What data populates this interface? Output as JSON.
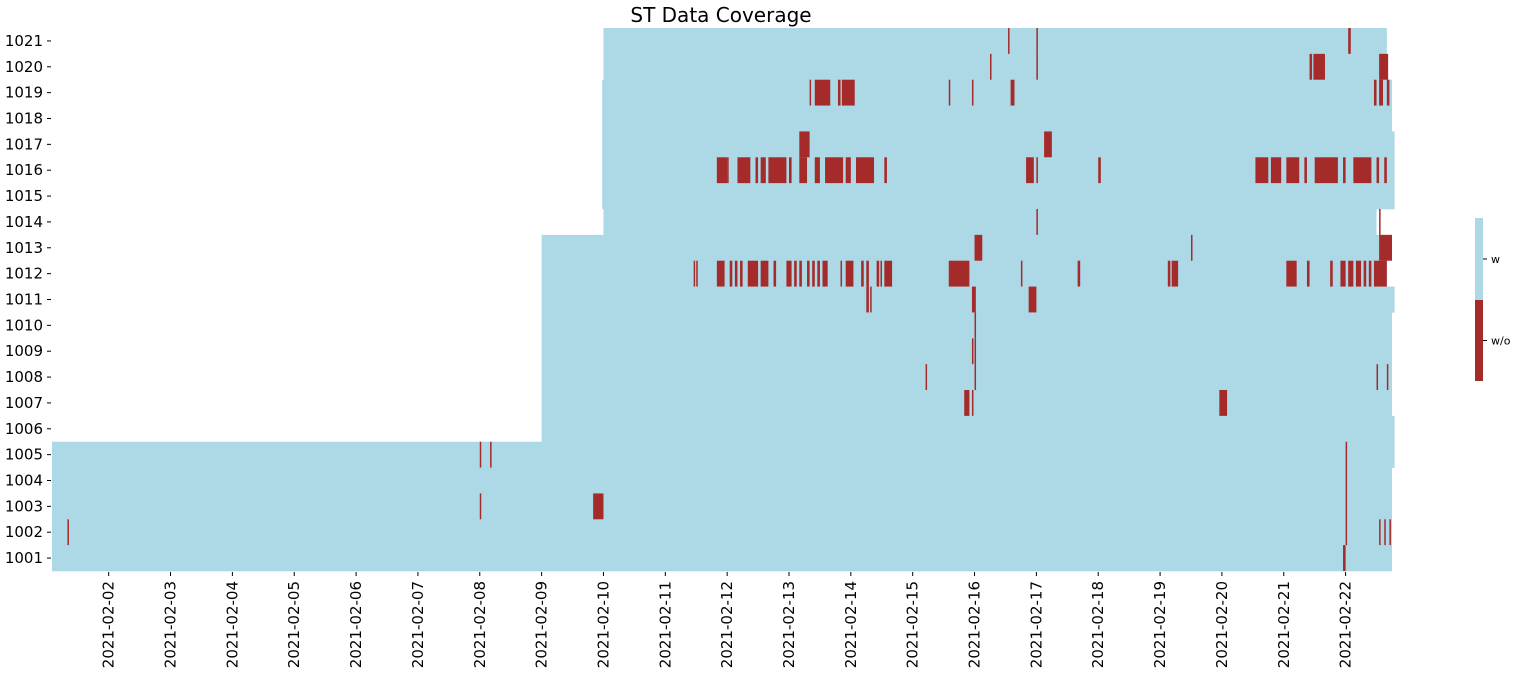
{
  "chart_data": {
    "type": "heatmap",
    "title": "ST Data Coverage",
    "xlabel": "",
    "ylabel": "",
    "x_tick_labels": [
      "2021-02-02",
      "2021-02-03",
      "2021-02-04",
      "2021-02-05",
      "2021-02-06",
      "2021-02-07",
      "2021-02-08",
      "2021-02-09",
      "2021-02-10",
      "2021-02-11",
      "2021-02-12",
      "2021-02-13",
      "2021-02-14",
      "2021-02-15",
      "2021-02-16",
      "2021-02-17",
      "2021-02-18",
      "2021-02-19",
      "2021-02-20",
      "2021-02-21",
      "2021-02-22"
    ],
    "x_range": [
      "2021-02-01T02:00",
      "2021-02-22T18:00"
    ],
    "rows": [
      "1021",
      "1020",
      "1019",
      "1018",
      "1017",
      "1016",
      "1015",
      "1014",
      "1013",
      "1012",
      "1011",
      "1010",
      "1009",
      "1008",
      "1007",
      "1006",
      "1005",
      "1004",
      "1003",
      "1002",
      "1001"
    ],
    "categories": [
      "w",
      "w/o"
    ],
    "colors": {
      "w": "#add8e6",
      "w/o": "#a52a2a"
    },
    "coverage": [
      {
        "row": "1021",
        "start": "2021-02-10T00:00",
        "end": "2021-02-22T16:00"
      },
      {
        "row": "1020",
        "start": "2021-02-10T00:00",
        "end": "2021-02-22T16:00"
      },
      {
        "row": "1019",
        "start": "2021-02-09T23:30",
        "end": "2021-02-22T18:00"
      },
      {
        "row": "1018",
        "start": "2021-02-09T23:30",
        "end": "2021-02-22T18:00"
      },
      {
        "row": "1017",
        "start": "2021-02-09T23:30",
        "end": "2021-02-22T19:00"
      },
      {
        "row": "1016",
        "start": "2021-02-09T23:30",
        "end": "2021-02-22T19:00"
      },
      {
        "row": "1015",
        "start": "2021-02-09T23:30",
        "end": "2021-02-22T19:00"
      },
      {
        "row": "1014",
        "start": "2021-02-10T00:00",
        "end": "2021-02-22T12:00"
      },
      {
        "row": "1013",
        "start": "2021-02-09T00:00",
        "end": "2021-02-22T16:00"
      },
      {
        "row": "1012",
        "start": "2021-02-09T00:00",
        "end": "2021-02-22T16:00"
      },
      {
        "row": "1011",
        "start": "2021-02-09T00:00",
        "end": "2021-02-22T19:00"
      },
      {
        "row": "1010",
        "start": "2021-02-09T00:00",
        "end": "2021-02-22T18:00"
      },
      {
        "row": "1009",
        "start": "2021-02-09T00:00",
        "end": "2021-02-22T18:00"
      },
      {
        "row": "1008",
        "start": "2021-02-09T00:00",
        "end": "2021-02-22T18:00"
      },
      {
        "row": "1007",
        "start": "2021-02-09T00:00",
        "end": "2021-02-22T18:00"
      },
      {
        "row": "1006",
        "start": "2021-02-09T00:00",
        "end": "2021-02-22T19:00"
      },
      {
        "row": "1005",
        "start": "2021-02-01T02:00",
        "end": "2021-02-22T19:00"
      },
      {
        "row": "1004",
        "start": "2021-02-01T02:00",
        "end": "2021-02-22T18:00"
      },
      {
        "row": "1003",
        "start": "2021-02-01T02:00",
        "end": "2021-02-22T18:00"
      },
      {
        "row": "1002",
        "start": "2021-02-01T02:00",
        "end": "2021-02-22T18:00"
      },
      {
        "row": "1001",
        "start": "2021-02-01T02:00",
        "end": "2021-02-22T18:00"
      }
    ],
    "gaps": [
      {
        "row": "1021",
        "start": "2021-02-16T13:00",
        "end": "2021-02-16T13:30"
      },
      {
        "row": "1021",
        "start": "2021-02-17T00:00",
        "end": "2021-02-17T00:30"
      },
      {
        "row": "1021",
        "start": "2021-02-22T01:00",
        "end": "2021-02-22T02:00"
      },
      {
        "row": "1020",
        "start": "2021-02-16T06:00",
        "end": "2021-02-16T06:30"
      },
      {
        "row": "1020",
        "start": "2021-02-17T00:00",
        "end": "2021-02-17T00:30"
      },
      {
        "row": "1020",
        "start": "2021-02-21T10:00",
        "end": "2021-02-21T11:00"
      },
      {
        "row": "1020",
        "start": "2021-02-21T11:30",
        "end": "2021-02-21T16:00"
      },
      {
        "row": "1020",
        "start": "2021-02-22T13:00",
        "end": "2021-02-22T16:30"
      },
      {
        "row": "1019",
        "start": "2021-02-13T08:00",
        "end": "2021-02-13T08:30"
      },
      {
        "row": "1019",
        "start": "2021-02-13T10:00",
        "end": "2021-02-13T16:00"
      },
      {
        "row": "1019",
        "start": "2021-02-13T19:00",
        "end": "2021-02-13T20:00"
      },
      {
        "row": "1019",
        "start": "2021-02-13T20:30",
        "end": "2021-02-14T01:30"
      },
      {
        "row": "1019",
        "start": "2021-02-15T14:00",
        "end": "2021-02-15T14:30"
      },
      {
        "row": "1019",
        "start": "2021-02-15T23:00",
        "end": "2021-02-15T23:30"
      },
      {
        "row": "1019",
        "start": "2021-02-16T14:00",
        "end": "2021-02-16T15:30"
      },
      {
        "row": "1019",
        "start": "2021-02-22T11:00",
        "end": "2021-02-22T12:00"
      },
      {
        "row": "1019",
        "start": "2021-02-22T13:00",
        "end": "2021-02-22T14:30"
      },
      {
        "row": "1019",
        "start": "2021-02-22T16:00",
        "end": "2021-02-22T17:00"
      },
      {
        "row": "1017",
        "start": "2021-02-13T04:00",
        "end": "2021-02-13T08:00"
      },
      {
        "row": "1017",
        "start": "2021-02-17T03:00",
        "end": "2021-02-17T06:00"
      },
      {
        "row": "1016",
        "start": "2021-02-11T20:00",
        "end": "2021-02-12T00:00"
      },
      {
        "row": "1016",
        "start": "2021-02-12T00:00",
        "end": "2021-02-12T00:30"
      },
      {
        "row": "1016",
        "start": "2021-02-12T04:00",
        "end": "2021-02-12T09:00"
      },
      {
        "row": "1016",
        "start": "2021-02-12T11:00",
        "end": "2021-02-12T12:00"
      },
      {
        "row": "1016",
        "start": "2021-02-12T13:00",
        "end": "2021-02-12T15:00"
      },
      {
        "row": "1016",
        "start": "2021-02-12T16:00",
        "end": "2021-02-12T23:00"
      },
      {
        "row": "1016",
        "start": "2021-02-13T00:00",
        "end": "2021-02-13T01:00"
      },
      {
        "row": "1016",
        "start": "2021-02-13T04:00",
        "end": "2021-02-13T07:00"
      },
      {
        "row": "1016",
        "start": "2021-02-13T10:00",
        "end": "2021-02-13T12:00"
      },
      {
        "row": "1016",
        "start": "2021-02-13T14:00",
        "end": "2021-02-13T21:00"
      },
      {
        "row": "1016",
        "start": "2021-02-13T22:00",
        "end": "2021-02-14T00:00"
      },
      {
        "row": "1016",
        "start": "2021-02-14T02:00",
        "end": "2021-02-14T09:00"
      },
      {
        "row": "1016",
        "start": "2021-02-14T13:00",
        "end": "2021-02-14T14:00"
      },
      {
        "row": "1016",
        "start": "2021-02-16T20:00",
        "end": "2021-02-16T23:00"
      },
      {
        "row": "1016",
        "start": "2021-02-17T00:00",
        "end": "2021-02-17T00:30"
      },
      {
        "row": "1016",
        "start": "2021-02-18T00:00",
        "end": "2021-02-18T01:00"
      },
      {
        "row": "1016",
        "start": "2021-02-20T13:00",
        "end": "2021-02-20T18:00"
      },
      {
        "row": "1016",
        "start": "2021-02-20T19:00",
        "end": "2021-02-20T23:00"
      },
      {
        "row": "1016",
        "start": "2021-02-21T01:00",
        "end": "2021-02-21T06:00"
      },
      {
        "row": "1016",
        "start": "2021-02-21T08:00",
        "end": "2021-02-21T09:00"
      },
      {
        "row": "1016",
        "start": "2021-02-21T12:00",
        "end": "2021-02-21T21:00"
      },
      {
        "row": "1016",
        "start": "2021-02-21T23:00",
        "end": "2021-02-22T00:00"
      },
      {
        "row": "1016",
        "start": "2021-02-22T03:00",
        "end": "2021-02-22T10:00"
      },
      {
        "row": "1016",
        "start": "2021-02-22T12:00",
        "end": "2021-02-22T13:00"
      },
      {
        "row": "1016",
        "start": "2021-02-22T15:00",
        "end": "2021-02-22T16:00"
      },
      {
        "row": "1014",
        "start": "2021-02-17T00:00",
        "end": "2021-02-17T00:30"
      },
      {
        "row": "1014",
        "start": "2021-02-22T13:00",
        "end": "2021-02-22T13:30"
      },
      {
        "row": "1013",
        "start": "2021-02-16T00:00",
        "end": "2021-02-16T03:00"
      },
      {
        "row": "1013",
        "start": "2021-02-19T12:00",
        "end": "2021-02-19T12:30"
      },
      {
        "row": "1013",
        "start": "2021-02-22T13:00",
        "end": "2021-02-22T18:00"
      },
      {
        "row": "1012",
        "start": "2021-02-11T11:00",
        "end": "2021-02-11T11:30"
      },
      {
        "row": "1012",
        "start": "2021-02-11T12:00",
        "end": "2021-02-11T12:30"
      },
      {
        "row": "1012",
        "start": "2021-02-11T20:00",
        "end": "2021-02-11T23:00"
      },
      {
        "row": "1012",
        "start": "2021-02-12T01:00",
        "end": "2021-02-12T02:00"
      },
      {
        "row": "1012",
        "start": "2021-02-12T03:00",
        "end": "2021-02-12T04:00"
      },
      {
        "row": "1012",
        "start": "2021-02-12T05:00",
        "end": "2021-02-12T06:00"
      },
      {
        "row": "1012",
        "start": "2021-02-12T08:00",
        "end": "2021-02-12T12:00"
      },
      {
        "row": "1012",
        "start": "2021-02-12T13:00",
        "end": "2021-02-12T16:00"
      },
      {
        "row": "1012",
        "start": "2021-02-12T18:00",
        "end": "2021-02-12T19:00"
      },
      {
        "row": "1012",
        "start": "2021-02-12T23:00",
        "end": "2021-02-13T01:00"
      },
      {
        "row": "1012",
        "start": "2021-02-13T02:00",
        "end": "2021-02-13T03:00"
      },
      {
        "row": "1012",
        "start": "2021-02-13T04:00",
        "end": "2021-02-13T05:00"
      },
      {
        "row": "1012",
        "start": "2021-02-13T07:00",
        "end": "2021-02-13T08:00"
      },
      {
        "row": "1012",
        "start": "2021-02-13T09:00",
        "end": "2021-02-13T10:00"
      },
      {
        "row": "1012",
        "start": "2021-02-13T11:00",
        "end": "2021-02-13T12:00"
      },
      {
        "row": "1012",
        "start": "2021-02-13T13:00",
        "end": "2021-02-13T15:00"
      },
      {
        "row": "1012",
        "start": "2021-02-13T20:00",
        "end": "2021-02-13T20:30"
      },
      {
        "row": "1012",
        "start": "2021-02-13T22:00",
        "end": "2021-02-14T01:00"
      },
      {
        "row": "1012",
        "start": "2021-02-14T04:00",
        "end": "2021-02-14T05:00"
      },
      {
        "row": "1012",
        "start": "2021-02-14T06:00",
        "end": "2021-02-14T07:00"
      },
      {
        "row": "1012",
        "start": "2021-02-14T10:00",
        "end": "2021-02-14T11:00"
      },
      {
        "row": "1012",
        "start": "2021-02-14T11:30",
        "end": "2021-02-14T12:00"
      },
      {
        "row": "1012",
        "start": "2021-02-14T13:00",
        "end": "2021-02-14T16:00"
      },
      {
        "row": "1012",
        "start": "2021-02-15T14:00",
        "end": "2021-02-15T22:00"
      },
      {
        "row": "1012",
        "start": "2021-02-16T18:00",
        "end": "2021-02-16T18:30"
      },
      {
        "row": "1012",
        "start": "2021-02-17T16:00",
        "end": "2021-02-17T17:00"
      },
      {
        "row": "1012",
        "start": "2021-02-19T03:00",
        "end": "2021-02-19T04:00"
      },
      {
        "row": "1012",
        "start": "2021-02-19T04:30",
        "end": "2021-02-19T07:00"
      },
      {
        "row": "1012",
        "start": "2021-02-21T01:00",
        "end": "2021-02-21T05:00"
      },
      {
        "row": "1012",
        "start": "2021-02-21T09:00",
        "end": "2021-02-21T10:00"
      },
      {
        "row": "1012",
        "start": "2021-02-21T18:00",
        "end": "2021-02-21T19:00"
      },
      {
        "row": "1012",
        "start": "2021-02-21T22:00",
        "end": "2021-02-22T00:00"
      },
      {
        "row": "1012",
        "start": "2021-02-22T01:00",
        "end": "2021-02-22T03:00"
      },
      {
        "row": "1012",
        "start": "2021-02-22T04:00",
        "end": "2021-02-22T06:00"
      },
      {
        "row": "1012",
        "start": "2021-02-22T07:00",
        "end": "2021-02-22T08:00"
      },
      {
        "row": "1012",
        "start": "2021-02-22T09:00",
        "end": "2021-02-22T10:00"
      },
      {
        "row": "1012",
        "start": "2021-02-22T11:00",
        "end": "2021-02-22T16:00"
      },
      {
        "row": "1011",
        "start": "2021-02-14T06:00",
        "end": "2021-02-14T07:00"
      },
      {
        "row": "1011",
        "start": "2021-02-14T07:30",
        "end": "2021-02-14T08:00"
      },
      {
        "row": "1011",
        "start": "2021-02-15T23:00",
        "end": "2021-02-16T00:30"
      },
      {
        "row": "1011",
        "start": "2021-02-16T21:00",
        "end": "2021-02-16T24:00"
      },
      {
        "row": "1010",
        "start": "2021-02-16T00:00",
        "end": "2021-02-16T00:30"
      },
      {
        "row": "1009",
        "start": "2021-02-15T23:00",
        "end": "2021-02-15T23:30"
      },
      {
        "row": "1009",
        "start": "2021-02-16T00:00",
        "end": "2021-02-16T00:30"
      },
      {
        "row": "1008",
        "start": "2021-02-15T05:00",
        "end": "2021-02-15T05:30"
      },
      {
        "row": "1008",
        "start": "2021-02-16T00:00",
        "end": "2021-02-16T00:30"
      },
      {
        "row": "1008",
        "start": "2021-02-22T12:00",
        "end": "2021-02-22T12:30"
      },
      {
        "row": "1008",
        "start": "2021-02-22T16:00",
        "end": "2021-02-22T16:30"
      },
      {
        "row": "1007",
        "start": "2021-02-15T20:00",
        "end": "2021-02-15T22:00"
      },
      {
        "row": "1007",
        "start": "2021-02-15T23:00",
        "end": "2021-02-15T23:30"
      },
      {
        "row": "1007",
        "start": "2021-02-19T23:00",
        "end": "2021-02-20T02:00"
      },
      {
        "row": "1005",
        "start": "2021-02-08T00:00",
        "end": "2021-02-08T00:30"
      },
      {
        "row": "1005",
        "start": "2021-02-08T04:00",
        "end": "2021-02-08T04:30"
      },
      {
        "row": "1005",
        "start": "2021-02-22T00:00",
        "end": "2021-02-22T00:30"
      },
      {
        "row": "1004",
        "start": "2021-02-22T00:00",
        "end": "2021-02-22T00:30"
      },
      {
        "row": "1003",
        "start": "2021-02-08T00:00",
        "end": "2021-02-08T00:30"
      },
      {
        "row": "1003",
        "start": "2021-02-09T20:00",
        "end": "2021-02-10T00:00"
      },
      {
        "row": "1003",
        "start": "2021-02-22T00:00",
        "end": "2021-02-22T00:30"
      },
      {
        "row": "1002",
        "start": "2021-02-01T08:00",
        "end": "2021-02-01T08:30"
      },
      {
        "row": "1002",
        "start": "2021-02-22T00:00",
        "end": "2021-02-22T00:30"
      },
      {
        "row": "1002",
        "start": "2021-02-22T13:00",
        "end": "2021-02-22T13:30"
      },
      {
        "row": "1002",
        "start": "2021-02-22T15:00",
        "end": "2021-02-22T15:30"
      },
      {
        "row": "1002",
        "start": "2021-02-22T17:00",
        "end": "2021-02-22T17:30"
      },
      {
        "row": "1001",
        "start": "2021-02-21T23:00",
        "end": "2021-02-22T00:00"
      }
    ],
    "legend": {
      "type": "colorbar",
      "position": "right",
      "labels": [
        "w",
        "w/o"
      ]
    },
    "grid": false
  }
}
